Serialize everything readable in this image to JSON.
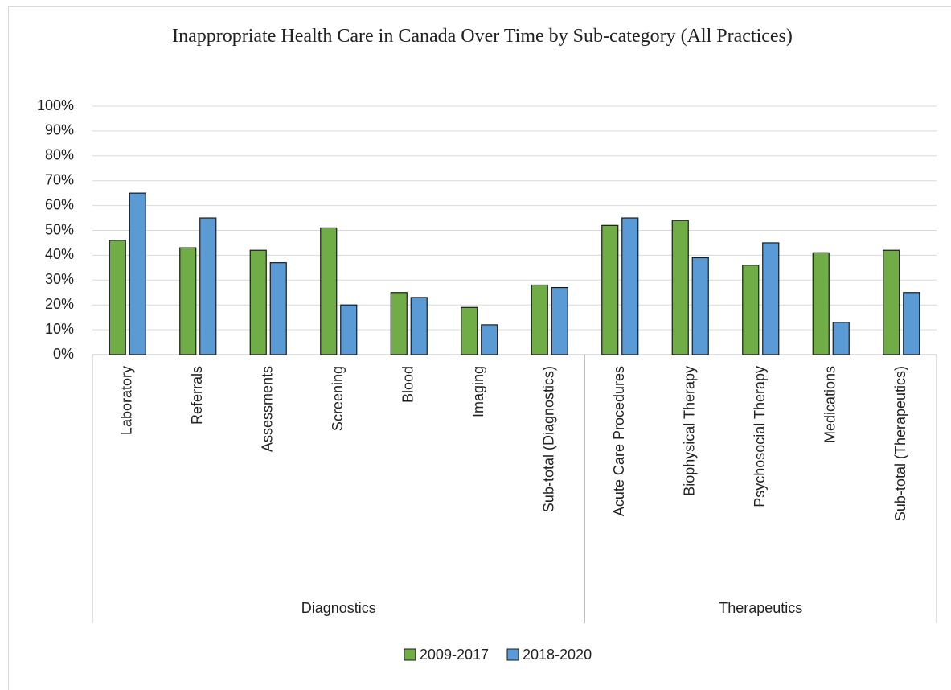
{
  "chart_data": {
    "type": "bar",
    "title": "Inappropriate Health Care in Canada Over Time by Sub-category (All Practices)",
    "categories": [
      "Laboratory",
      "Referrals",
      "Assessments",
      "Screening",
      "Blood",
      "Imaging",
      "Sub-total (Diagnostics)",
      "Acute Care Procedures",
      "Biophysical Therapy",
      "Psychosocial Therapy",
      "Medications",
      "Sub-total (Therapeutics)"
    ],
    "groups": [
      {
        "name": "Diagnostics",
        "count": 7
      },
      {
        "name": "Therapeutics",
        "count": 5
      }
    ],
    "series": [
      {
        "name": "2009-2017",
        "color": "#70ad47",
        "values": [
          46,
          43,
          42,
          51,
          25,
          19,
          28,
          52,
          54,
          36,
          41,
          42
        ]
      },
      {
        "name": "2018-2020",
        "color": "#5b9bd5",
        "values": [
          65,
          55,
          37,
          20,
          23,
          12,
          27,
          55,
          39,
          45,
          13,
          25
        ]
      }
    ],
    "ylim": [
      0,
      100
    ],
    "yticks": [
      {
        "value": 0,
        "label": "0%"
      },
      {
        "value": 10,
        "label": "10%"
      },
      {
        "value": 20,
        "label": "20%"
      },
      {
        "value": 30,
        "label": "30%"
      },
      {
        "value": 40,
        "label": "40%"
      },
      {
        "value": 50,
        "label": "50%"
      },
      {
        "value": 60,
        "label": "60%"
      },
      {
        "value": 70,
        "label": "70%"
      },
      {
        "value": 80,
        "label": "80%"
      },
      {
        "value": 90,
        "label": "90%"
      },
      {
        "value": 100,
        "label": "100%"
      }
    ],
    "grid": true,
    "legend": "bottom"
  }
}
